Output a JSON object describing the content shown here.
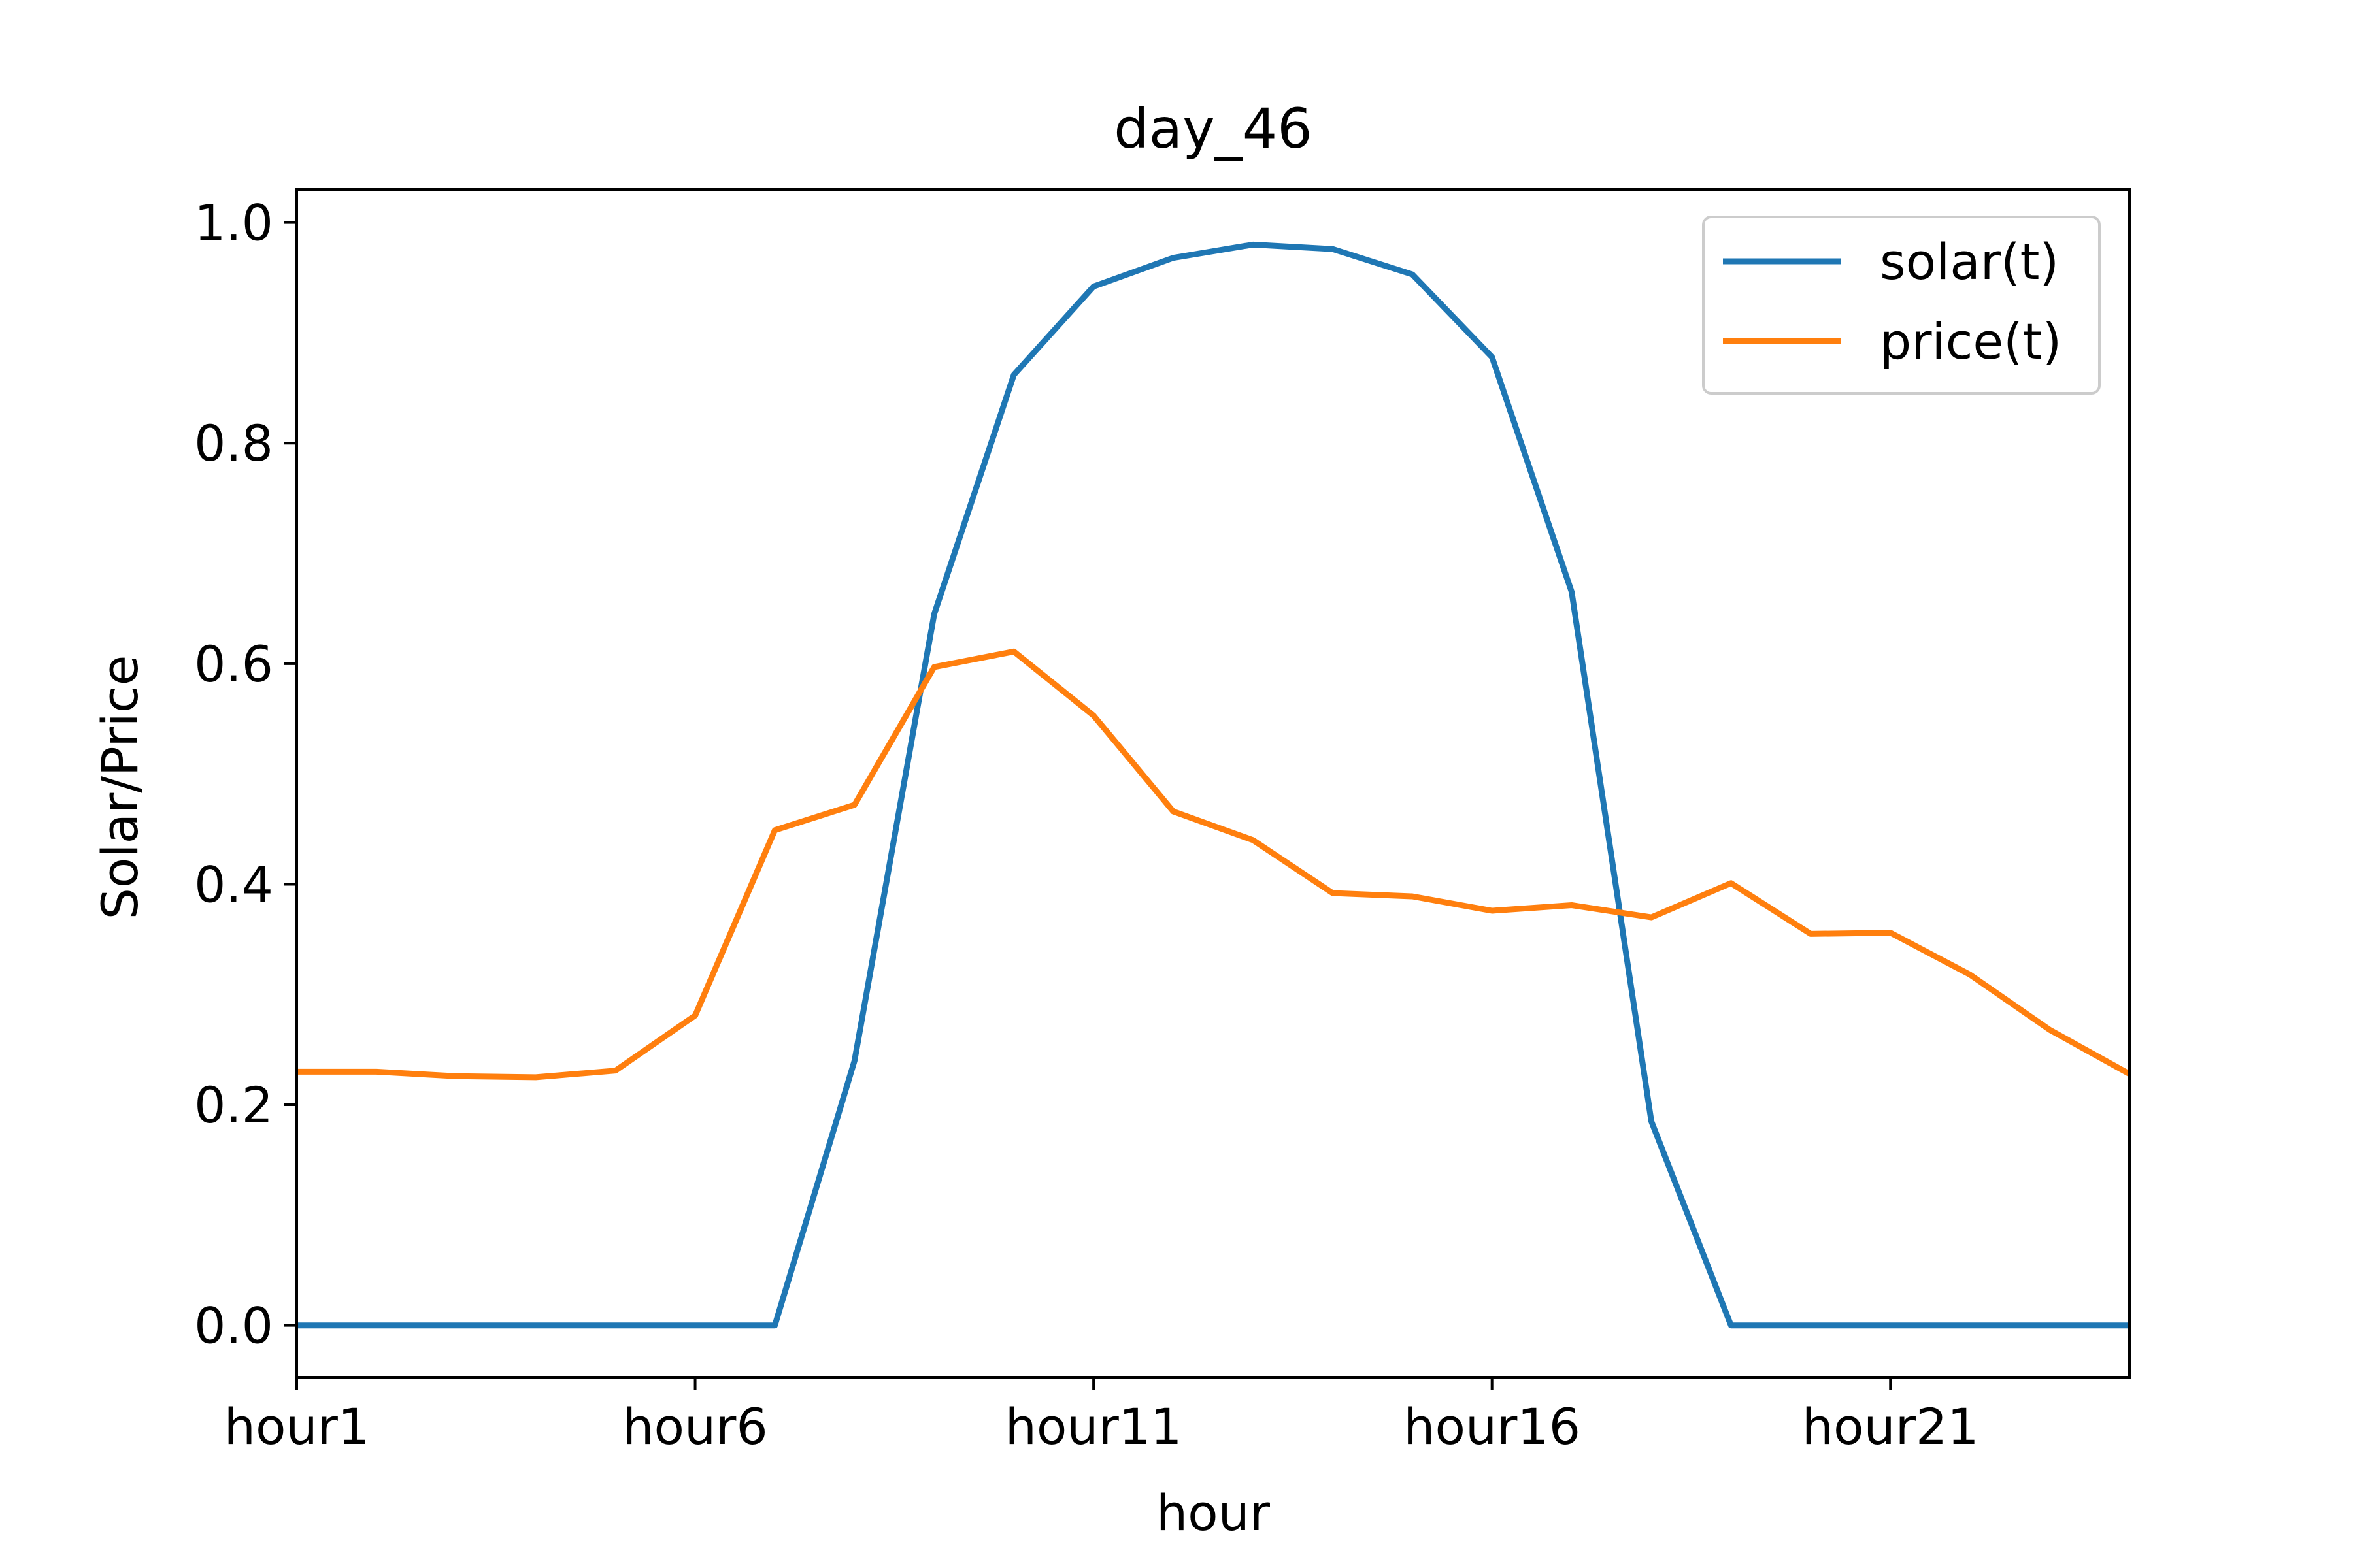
{
  "chart_data": {
    "type": "line",
    "title": "day_46",
    "xlabel": "hour",
    "ylabel": "Solar/Price",
    "x": [
      1,
      2,
      3,
      4,
      5,
      6,
      7,
      8,
      9,
      10,
      11,
      12,
      13,
      14,
      15,
      16,
      17,
      18,
      19,
      20,
      21,
      22,
      23,
      24
    ],
    "xlim": [
      1,
      24
    ],
    "ylim": [
      -0.047,
      1.03
    ],
    "xticks": [
      1,
      6,
      11,
      16,
      21
    ],
    "xtick_labels": [
      "hour1",
      "hour6",
      "hour11",
      "hour16",
      "hour21"
    ],
    "yticks": [
      0.0,
      0.2,
      0.4,
      0.6,
      0.8,
      1.0
    ],
    "ytick_labels": [
      "0.0",
      "0.2",
      "0.4",
      "0.6",
      "0.8",
      "1.0"
    ],
    "grid": false,
    "legend_position": "top-right",
    "series": [
      {
        "name": "solar(t)",
        "color": "#1f77b4",
        "values": [
          0,
          0,
          0,
          0,
          0,
          0,
          0,
          0.24,
          0.645,
          0.862,
          0.942,
          0.968,
          0.98,
          0.976,
          0.953,
          0.878,
          0.665,
          0.185,
          0,
          0,
          0,
          0,
          0,
          0
        ]
      },
      {
        "name": "price(t)",
        "color": "#ff7f0e",
        "values": [
          0.23,
          0.23,
          0.226,
          0.225,
          0.231,
          0.281,
          0.449,
          0.472,
          0.597,
          0.611,
          0.553,
          0.466,
          0.44,
          0.392,
          0.389,
          0.376,
          0.381,
          0.37,
          0.401,
          0.355,
          0.356,
          0.318,
          0.268,
          0.228
        ]
      }
    ]
  }
}
